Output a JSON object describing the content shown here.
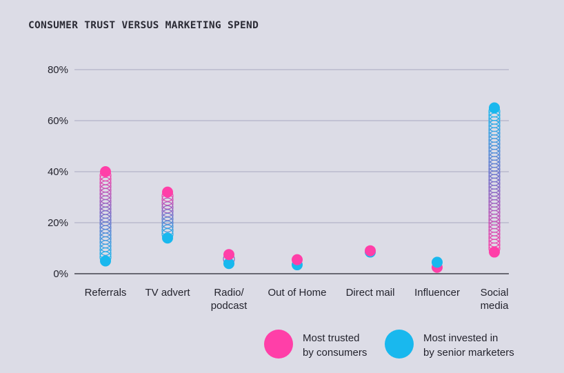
{
  "chart_data": {
    "type": "dot-range",
    "title": "CONSUMER TRUST VERSUS MARKETING SPEND",
    "categories": [
      [
        "Referrals"
      ],
      [
        "TV advert"
      ],
      [
        "Radio/",
        "podcast"
      ],
      [
        "Out of Home"
      ],
      [
        "Direct mail"
      ],
      [
        "Influencer"
      ],
      [
        "Social",
        "media"
      ]
    ],
    "series": [
      {
        "name": "Most trusted by consumers",
        "values": [
          40,
          32,
          7.5,
          5.5,
          9,
          2.5,
          8.5
        ]
      },
      {
        "name": "Most invested in by senior marketers",
        "values": [
          5,
          14,
          4,
          3.5,
          8.5,
          4.5,
          65
        ]
      }
    ],
    "yticks": [
      "0%",
      "20%",
      "40%",
      "60%",
      "80%"
    ],
    "ylim": [
      0,
      80
    ],
    "grid": true,
    "legend_position": "bottom-right",
    "colors": {
      "trusted": "#ff3fa8",
      "invested": "#19b8ee",
      "grid": "#a8a8c0",
      "background": "#dcdce6"
    }
  },
  "legend": {
    "trusted": [
      "Most trusted",
      "by consumers"
    ],
    "invested": [
      "Most invested in",
      "by senior marketers"
    ]
  }
}
